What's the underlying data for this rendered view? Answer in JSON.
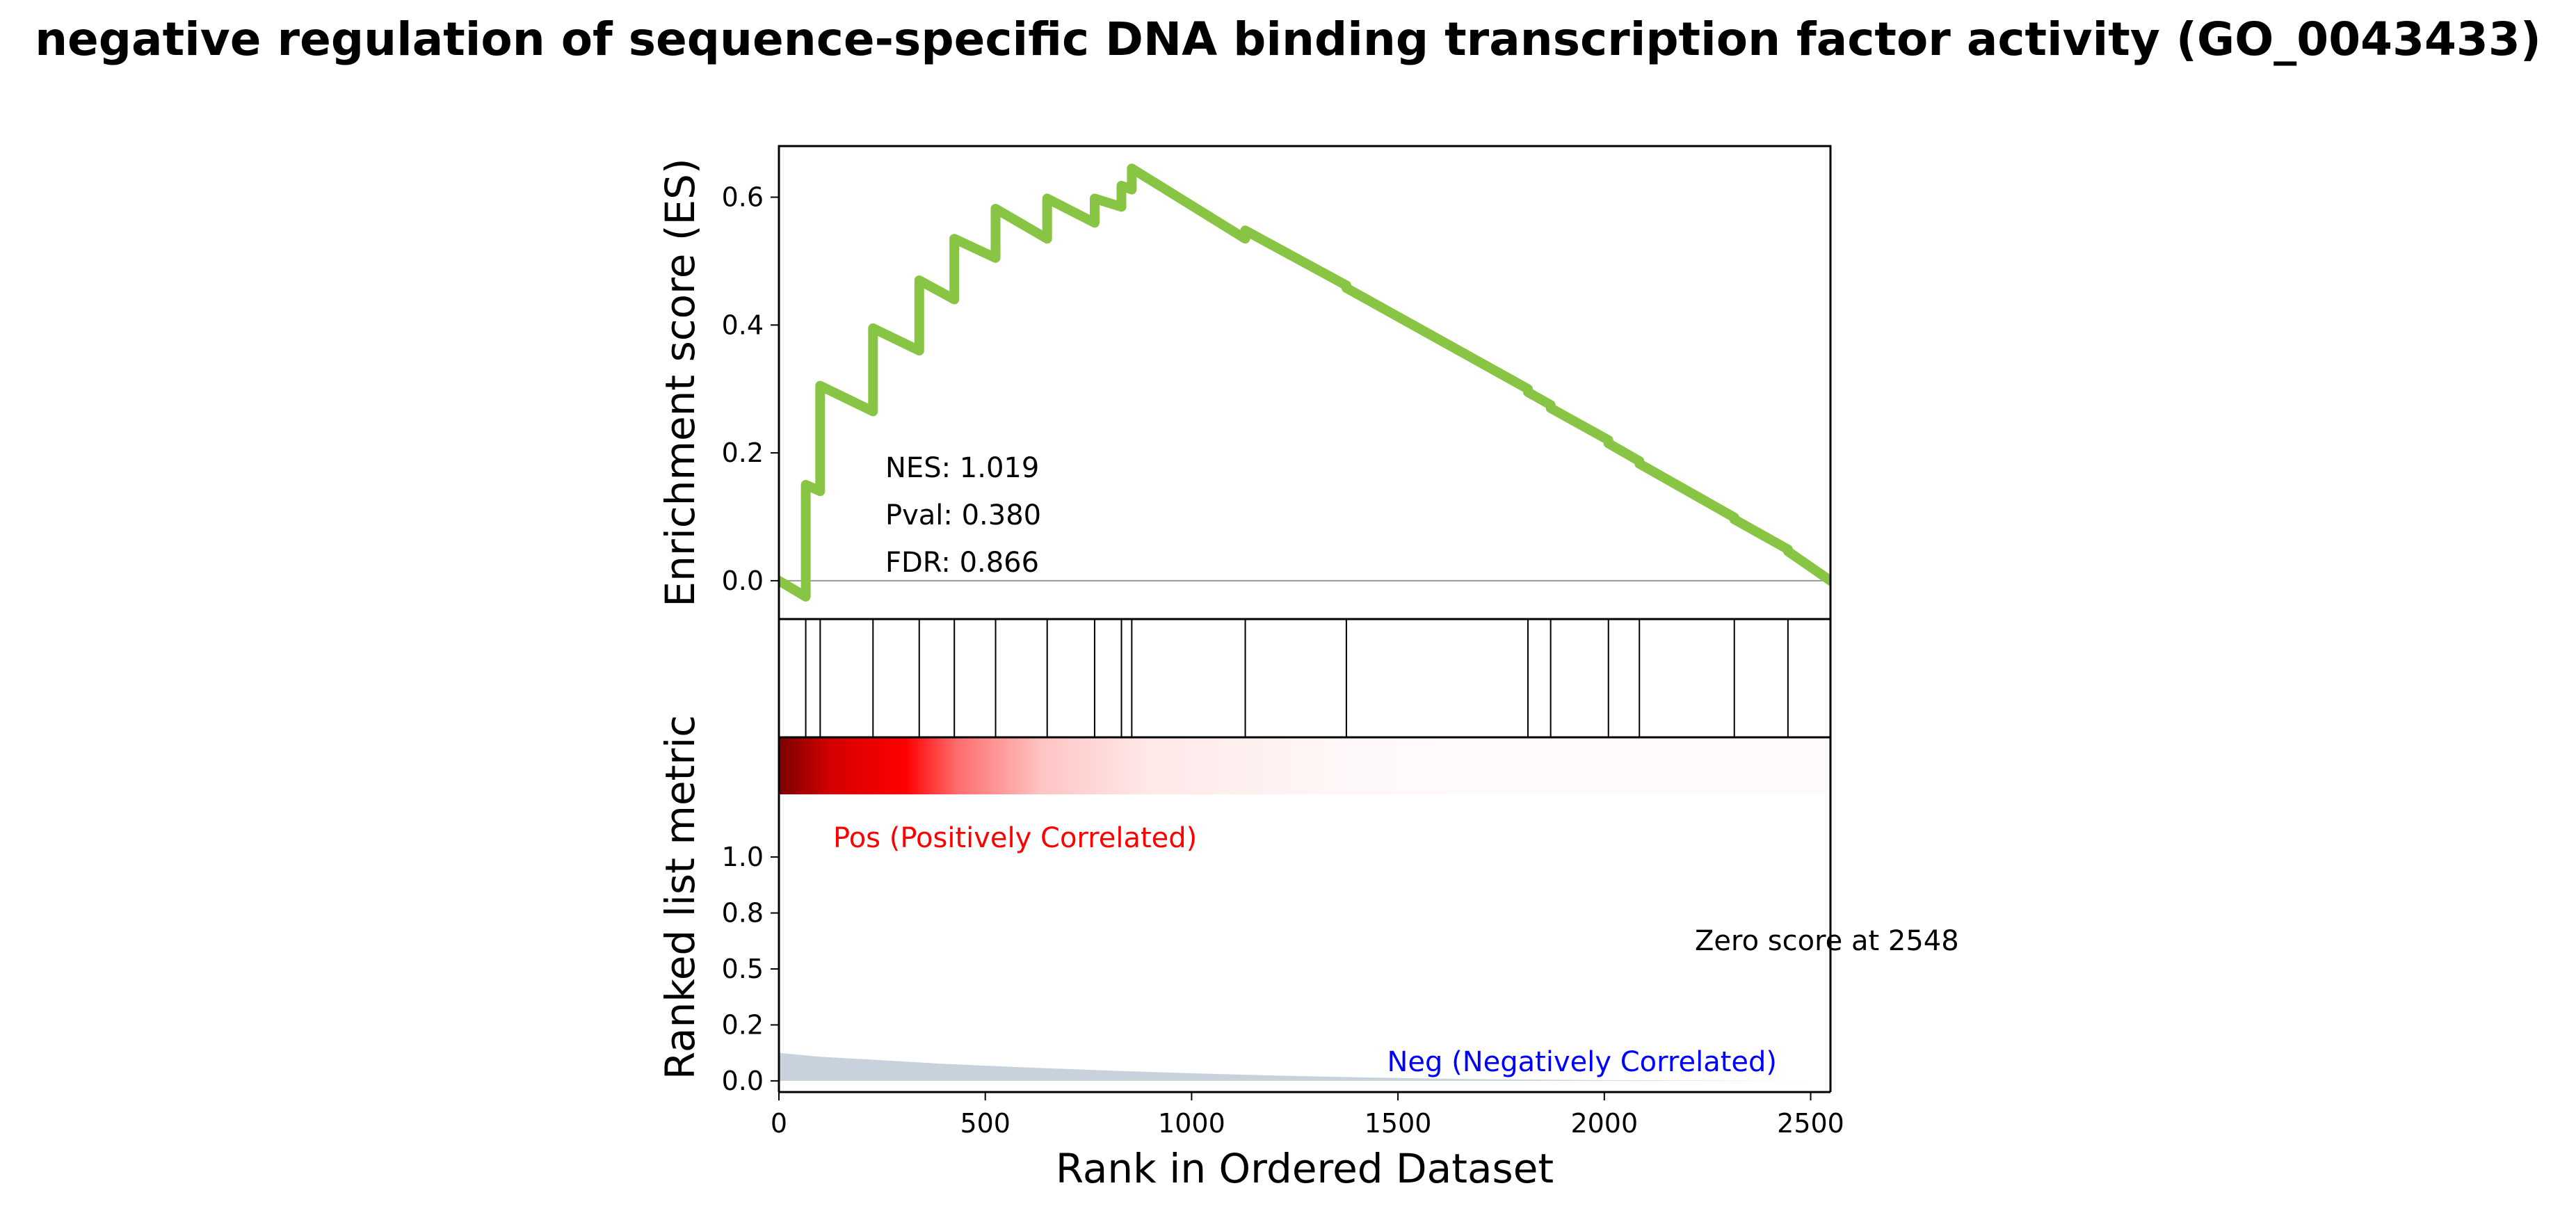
{
  "page": {
    "title": "negative regulation of sequence-specific DNA binding transcription factor activity (GO_0043433)"
  },
  "chart_data": {
    "type": "line",
    "title": "negative regulation of sequence-specific DNA binding transcription factor activity (GO_0043433)",
    "xlabel": "Rank in Ordered Dataset",
    "xlim": [
      0,
      2548
    ],
    "x_ticks": [
      0,
      500,
      1000,
      1500,
      2000,
      2500
    ],
    "x_tick_labels": [
      "0",
      "500",
      "1000",
      "1500",
      "2000",
      "2500"
    ],
    "es_panel": {
      "ylabel": "Enrichment score (ES)",
      "ylim": [
        -0.06,
        0.68
      ],
      "y_ticks": [
        0.0,
        0.2,
        0.4,
        0.6
      ],
      "y_tick_labels": [
        "0.0",
        "0.2",
        "0.4",
        "0.6"
      ],
      "line_color": "#88c544",
      "zero_line_color": "#999999",
      "series": [
        {
          "x": [
            0,
            65,
            65,
            100,
            100,
            228,
            228,
            340,
            340,
            425,
            425,
            525,
            525,
            650,
            650,
            765,
            765,
            830,
            830,
            855,
            855,
            1130,
            1130,
            1375,
            1375,
            1815,
            1815,
            1870,
            1870,
            2010,
            2010,
            2085,
            2085,
            2315,
            2315,
            2445,
            2445,
            2548
          ],
          "y": [
            0.0,
            -0.025,
            0.15,
            0.14,
            0.305,
            0.265,
            0.395,
            0.36,
            0.47,
            0.44,
            0.535,
            0.505,
            0.582,
            0.535,
            0.598,
            0.56,
            0.598,
            0.585,
            0.618,
            0.612,
            0.645,
            0.535,
            0.548,
            0.462,
            0.458,
            0.3,
            0.295,
            0.275,
            0.27,
            0.22,
            0.215,
            0.187,
            0.183,
            0.099,
            0.096,
            0.049,
            0.046,
            0.0
          ]
        }
      ],
      "stats": [
        {
          "label": "NES: 1.019"
        },
        {
          "label": "Pval: 0.380"
        },
        {
          "label": "FDR: 0.866"
        }
      ]
    },
    "hits_panel": {
      "hit_ranks": [
        65,
        100,
        228,
        340,
        425,
        525,
        650,
        765,
        830,
        855,
        1130,
        1375,
        1815,
        1870,
        2010,
        2085,
        2315,
        2445
      ],
      "line_color": "#000000"
    },
    "heatmap_bar": {
      "colors": [
        "#7a0000",
        "#d40000",
        "#ff0000",
        "#ff6e6e",
        "#ffc4c4",
        "#ffe8e8",
        "#fff8f8",
        "#fffbfb"
      ],
      "stops": [
        0,
        50,
        120,
        170,
        250,
        350,
        550,
        720
      ]
    },
    "rank_panel": {
      "ylabel": "Ranked list metric",
      "ylim": [
        -0.05,
        1.28
      ],
      "y_ticks": [
        0.0,
        0.25,
        0.5,
        0.75,
        1.0
      ],
      "y_tick_labels": [
        "0.0",
        "0.2",
        "0.5",
        "0.8",
        "1.0"
      ],
      "fill_color": "#c8d2dc",
      "series": [
        {
          "x": [
            0,
            100,
            250,
            400,
            600,
            800,
            1000,
            1200,
            1400,
            1600,
            1800,
            2000,
            2200,
            2400,
            2548
          ],
          "y": [
            0.125,
            0.108,
            0.092,
            0.076,
            0.06,
            0.046,
            0.034,
            0.024,
            0.016,
            0.01,
            0.006,
            0.003,
            0.0015,
            0.0005,
            0.0
          ]
        }
      ],
      "annotations": {
        "positive": {
          "label": "Pos (Positively Correlated)",
          "color": "#ff0000"
        },
        "negative": {
          "label": "Neg (Negatively Correlated)",
          "color": "#0000ff"
        },
        "zero_score": {
          "label": "Zero score at 2548"
        }
      }
    }
  }
}
